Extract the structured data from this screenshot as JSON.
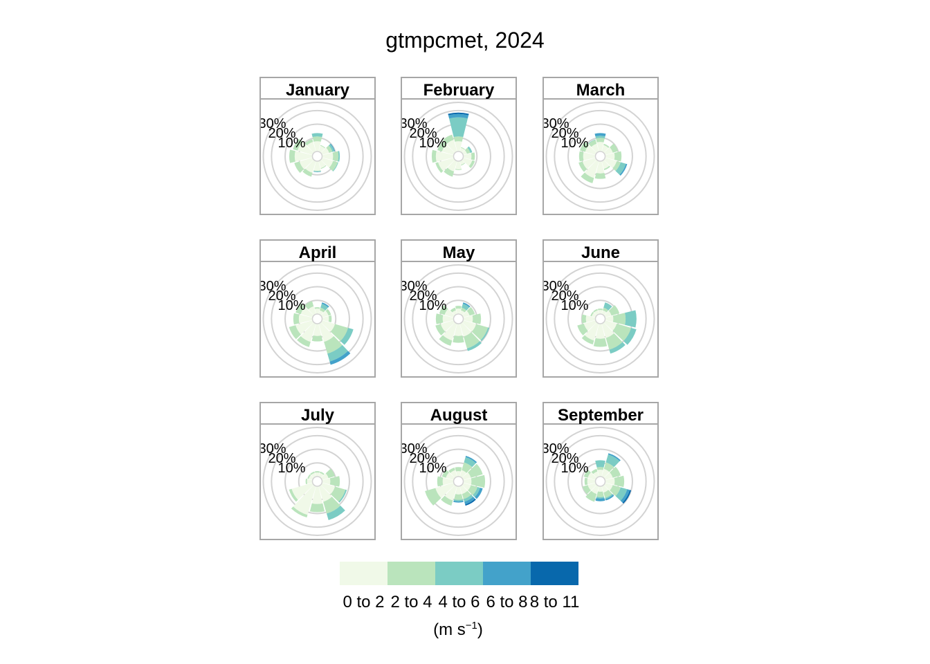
{
  "title": "gtmpcmet, 2024",
  "chart_data": {
    "type": "windrose",
    "title": "gtmpcmet, 2024",
    "radial_ticks": [
      "10%",
      "20%",
      "30%"
    ],
    "radial_tick_values": [
      10,
      20,
      30
    ],
    "radial_max": 36,
    "direction_bins_deg": [
      0,
      30,
      60,
      90,
      120,
      150,
      180,
      210,
      240,
      270,
      300,
      330
    ],
    "speed_bins": [
      "0 to 2",
      "2 to 4",
      "4 to 6",
      "6 to 8",
      "8 to 11"
    ],
    "colors": [
      "#f0f9e8",
      "#bae4bc",
      "#7bccc4",
      "#43a2ca",
      "#0868ac"
    ],
    "legend": {
      "labels": [
        "0 to 2",
        "2 to 4",
        "4 to 6",
        "6 to 8",
        "8 to 11"
      ],
      "unit": "m s",
      "unit_exponent": "−1"
    },
    "panels": [
      {
        "name": "January",
        "freq": [
          [
            7.5,
            3.5,
            2.5,
            0,
            0
          ],
          [
            4.5,
            0.5,
            0,
            0,
            0
          ],
          [
            5.5,
            2.5,
            1.5,
            0.5,
            0
          ],
          [
            8,
            4,
            1,
            0,
            0
          ],
          [
            8.5,
            3.5,
            0.5,
            0,
            0
          ],
          [
            5.5,
            0.5,
            0,
            0,
            0
          ],
          [
            7,
            0.5,
            0.3,
            0.3,
            0
          ],
          [
            9,
            3,
            0,
            0,
            0
          ],
          [
            10,
            4,
            0,
            0,
            0
          ],
          [
            13,
            4,
            0,
            0,
            0
          ],
          [
            11.5,
            3.5,
            0,
            0,
            0
          ],
          [
            7.5,
            2,
            0,
            0,
            0
          ]
        ]
      },
      {
        "name": "February",
        "freq": [
          [
            7.5,
            3.5,
            14,
            2.5,
            1
          ],
          [
            3,
            0.5,
            0,
            0,
            0
          ],
          [
            3,
            2.5,
            1.5,
            0,
            0
          ],
          [
            6,
            2.5,
            0,
            0,
            0
          ],
          [
            7,
            2,
            0,
            0,
            0
          ],
          [
            3,
            0.5,
            0,
            0,
            0
          ],
          [
            6,
            0.5,
            0,
            0,
            0
          ],
          [
            8,
            4,
            0,
            0,
            0
          ],
          [
            12,
            2,
            0,
            0,
            0
          ],
          [
            13,
            3,
            0,
            0,
            0
          ],
          [
            9,
            3.5,
            0,
            0,
            0
          ],
          [
            9,
            4,
            0,
            0,
            0
          ]
        ]
      },
      {
        "name": "March",
        "freq": [
          [
            7,
            3,
            1.5,
            2,
            0
          ],
          [
            5,
            1,
            0,
            0,
            0
          ],
          [
            6,
            4,
            0,
            0,
            0
          ],
          [
            7,
            5,
            0,
            0,
            0
          ],
          [
            9,
            3,
            4,
            1,
            0
          ],
          [
            6,
            1,
            0,
            0,
            0
          ],
          [
            9,
            4,
            0,
            0,
            0
          ],
          [
            13,
            4,
            0,
            0,
            0
          ],
          [
            10,
            3,
            0,
            0,
            0
          ],
          [
            9,
            3,
            0,
            0,
            0
          ],
          [
            8,
            4,
            0,
            0,
            0
          ],
          [
            6,
            3,
            0.3,
            0,
            0
          ]
        ]
      },
      {
        "name": "April",
        "freq": [
          [
            4,
            1,
            0,
            0,
            0
          ],
          [
            3,
            2,
            3,
            1,
            0
          ],
          [
            5,
            2,
            0,
            0,
            0
          ],
          [
            5,
            2,
            0,
            0,
            0
          ],
          [
            10,
            10,
            4,
            0,
            0
          ],
          [
            14,
            9,
            6,
            2.5,
            0
          ],
          [
            9,
            4,
            0,
            0,
            0
          ],
          [
            14,
            4,
            0,
            0,
            0
          ],
          [
            13,
            5,
            0,
            0,
            0
          ],
          [
            10,
            4,
            0,
            0,
            0
          ],
          [
            9,
            4,
            0,
            0,
            0
          ],
          [
            6,
            4,
            0,
            0,
            0
          ]
        ]
      },
      {
        "name": "May",
        "freq": [
          [
            4,
            2,
            0,
            0,
            0
          ],
          [
            3,
            2,
            3,
            1,
            0
          ],
          [
            5,
            4,
            0,
            0,
            0
          ],
          [
            7,
            6,
            0,
            0,
            0
          ],
          [
            10,
            9,
            1,
            0,
            0
          ],
          [
            10,
            9,
            2,
            0,
            0
          ],
          [
            9,
            5,
            0,
            0,
            0
          ],
          [
            13,
            4,
            0,
            0,
            0
          ],
          [
            10,
            4,
            0,
            0,
            0
          ],
          [
            8,
            5,
            0,
            0,
            0
          ],
          [
            7,
            4,
            0,
            0,
            0
          ],
          [
            3,
            2,
            0,
            0,
            0
          ]
        ]
      },
      {
        "name": "June",
        "freq": [
          [
            3,
            1,
            0,
            0,
            0
          ],
          [
            3,
            2,
            4,
            0,
            0
          ],
          [
            5,
            6,
            0,
            0,
            0
          ],
          [
            6,
            9,
            8,
            0,
            0
          ],
          [
            9,
            11,
            4,
            0,
            0
          ],
          [
            11,
            9,
            3,
            0,
            0
          ],
          [
            11,
            6,
            0,
            0,
            0
          ],
          [
            13,
            3,
            0,
            0,
            0
          ],
          [
            9,
            5,
            0,
            0,
            0
          ],
          [
            7,
            3,
            0,
            0,
            0
          ],
          [
            3,
            1,
            0,
            0,
            0
          ],
          [
            3,
            1,
            0,
            0,
            0
          ]
        ]
      },
      {
        "name": "July",
        "freq": [
          [
            3,
            1,
            0,
            0,
            0
          ],
          [
            3,
            1,
            0,
            0,
            0
          ],
          [
            5,
            5,
            0,
            0,
            0
          ],
          [
            6,
            7,
            0,
            0,
            0
          ],
          [
            10,
            8,
            1,
            0,
            0
          ],
          [
            12,
            9,
            5,
            0,
            0
          ],
          [
            13,
            6,
            0,
            0,
            0
          ],
          [
            22,
            2,
            0,
            0,
            0
          ],
          [
            16,
            2,
            0,
            0,
            0
          ],
          [
            4,
            1,
            0,
            0,
            0
          ],
          [
            3,
            1,
            0,
            0,
            0
          ],
          [
            3,
            1,
            0,
            0,
            0
          ]
        ]
      },
      {
        "name": "August",
        "freq": [
          [
            4,
            3,
            0,
            0,
            0
          ],
          [
            5,
            6,
            4,
            1,
            0
          ],
          [
            6,
            9,
            0,
            0,
            0
          ],
          [
            6,
            10,
            0,
            0,
            0
          ],
          [
            6,
            5,
            2,
            2,
            0
          ],
          [
            6,
            4,
            2,
            2,
            1
          ],
          [
            6,
            4,
            1,
            1,
            0
          ],
          [
            11,
            4,
            0,
            0,
            0
          ],
          [
            14,
            8,
            0,
            0,
            0
          ],
          [
            8,
            4,
            0,
            0,
            0
          ],
          [
            6,
            3,
            0,
            0,
            0
          ],
          [
            5,
            2,
            0,
            0,
            0
          ]
        ]
      },
      {
        "name": "September",
        "freq": [
          [
            5,
            2,
            5,
            0,
            0
          ],
          [
            6,
            5,
            6,
            1,
            0
          ],
          [
            6,
            6,
            0,
            0,
            0
          ],
          [
            7,
            7,
            0,
            0,
            0
          ],
          [
            6,
            6,
            5,
            2,
            1
          ],
          [
            5,
            4,
            1,
            1,
            0
          ],
          [
            4,
            4,
            1,
            2,
            0
          ],
          [
            6,
            6,
            0,
            0,
            0
          ],
          [
            6,
            4,
            0,
            0,
            0
          ],
          [
            6,
            2,
            0,
            0,
            0
          ],
          [
            6,
            3,
            0,
            0,
            0
          ],
          [
            4,
            2,
            0,
            0,
            0
          ]
        ]
      }
    ]
  }
}
